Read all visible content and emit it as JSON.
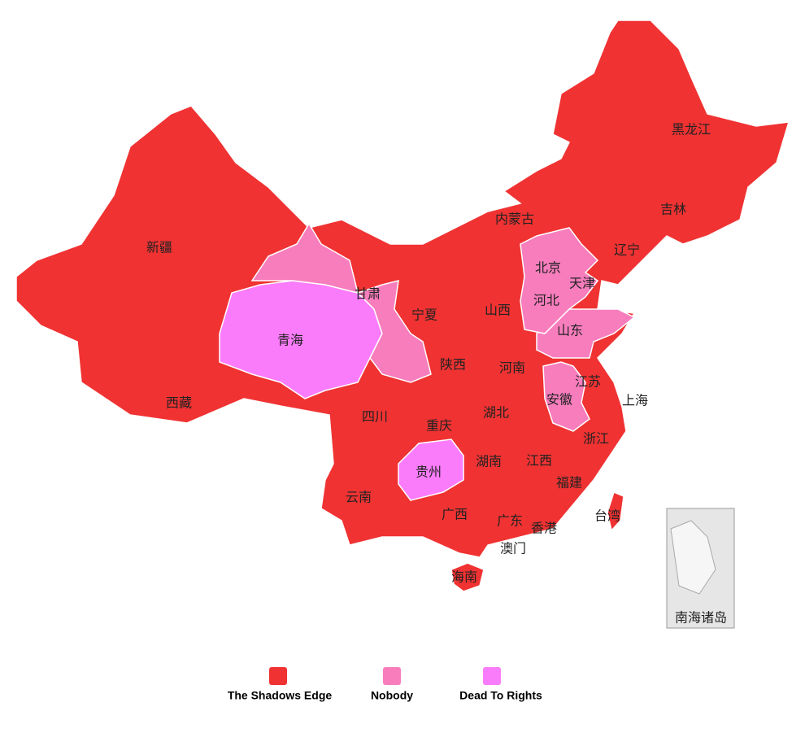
{
  "legend": [
    {
      "label": "The Shadows Edge",
      "color": "#f03232"
    },
    {
      "label": "Nobody",
      "color": "#f77dbd"
    },
    {
      "label": "Dead To Rights",
      "color": "#fb7cfb"
    }
  ],
  "regions": [
    {
      "name": "新疆",
      "legend": 0
    },
    {
      "name": "西藏",
      "legend": 0
    },
    {
      "name": "青海",
      "legend": 2
    },
    {
      "name": "甘肃",
      "legend": 1
    },
    {
      "name": "内蒙古",
      "legend": 0
    },
    {
      "name": "宁夏",
      "legend": 0
    },
    {
      "name": "陕西",
      "legend": 0
    },
    {
      "name": "山西",
      "legend": 0
    },
    {
      "name": "四川",
      "legend": 0
    },
    {
      "name": "重庆",
      "legend": 0
    },
    {
      "name": "云南",
      "legend": 0
    },
    {
      "name": "贵州",
      "legend": 2
    },
    {
      "name": "广西",
      "legend": 0
    },
    {
      "name": "广东",
      "legend": 0
    },
    {
      "name": "海南",
      "legend": 0
    },
    {
      "name": "湖南",
      "legend": 0
    },
    {
      "name": "湖北",
      "legend": 0
    },
    {
      "name": "河南",
      "legend": 0
    },
    {
      "name": "江西",
      "legend": 0
    },
    {
      "name": "福建",
      "legend": 0
    },
    {
      "name": "浙江",
      "legend": 0
    },
    {
      "name": "上海",
      "legend": 0
    },
    {
      "name": "江苏",
      "legend": 0
    },
    {
      "name": "安徽",
      "legend": 1
    },
    {
      "name": "山东",
      "legend": 1
    },
    {
      "name": "河北",
      "legend": 1
    },
    {
      "name": "北京",
      "legend": 1
    },
    {
      "name": "天津",
      "legend": 1
    },
    {
      "name": "辽宁",
      "legend": 0
    },
    {
      "name": "吉林",
      "legend": 0
    },
    {
      "name": "黑龙江",
      "legend": 0
    },
    {
      "name": "台湾",
      "legend": 0
    },
    {
      "name": "香港",
      "legend": 0
    },
    {
      "name": "澳门",
      "legend": 0
    }
  ],
  "inset": {
    "label": "南海诸岛"
  }
}
